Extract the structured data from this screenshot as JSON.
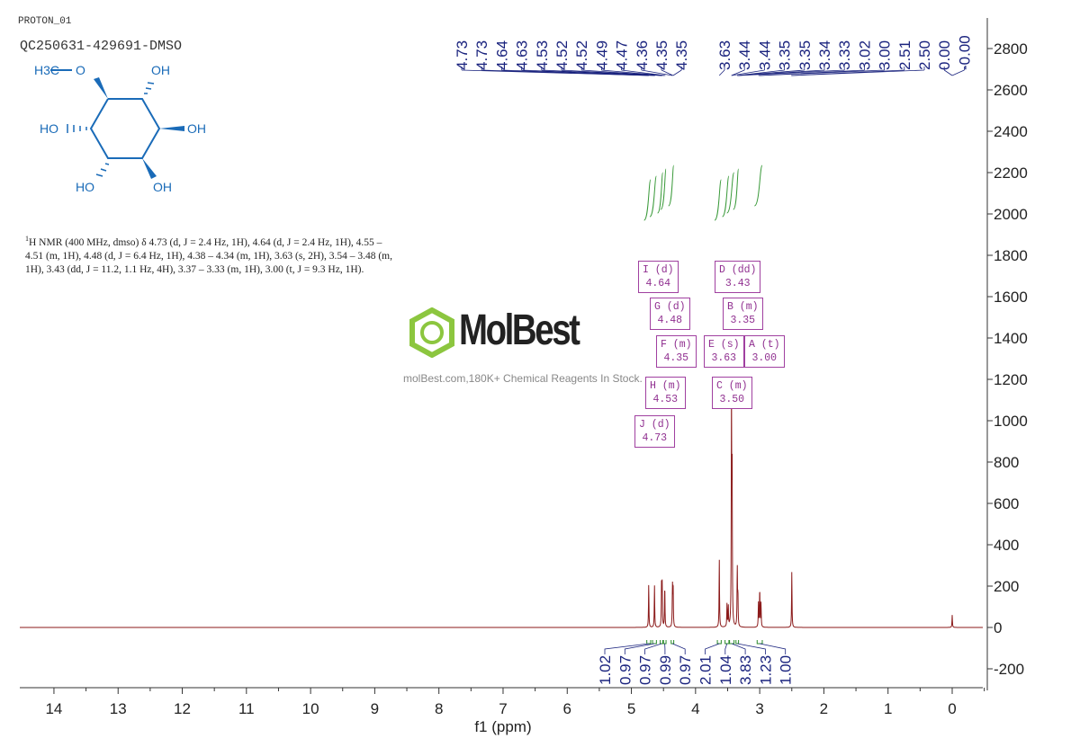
{
  "header": {
    "experiment": "PROTON_01",
    "sample": "QC250631-429691-DMSO"
  },
  "structure": {
    "labels": [
      "H3C",
      "O",
      "OH",
      "HO",
      "OH",
      "HO",
      "OH"
    ],
    "color": "#1a6bb8"
  },
  "description": {
    "nucleus_sup": "1",
    "text": "H NMR (400 MHz, dmso) δ 4.73 (d, J = 2.4 Hz, 1H), 4.64 (d, J = 2.4 Hz, 1H), 4.55 – 4.51 (m, 1H), 4.48 (d, J = 6.4 Hz, 1H), 4.38 – 4.34 (m, 1H), 3.63 (s, 2H), 3.54 – 3.48 (m, 1H), 3.43 (dd, J = 11.2, 1.1 Hz, 4H), 3.37 – 3.33 (m, 1H), 3.00 (t, J = 9.3 Hz, 1H)."
  },
  "watermark": {
    "logo": "MolBest",
    "tagline": "molBest.com,180K+ Chemical Reagents In Stock."
  },
  "chart_data": {
    "type": "line",
    "xlabel": "f1 (ppm)",
    "xlim": [
      14.5,
      -0.5
    ],
    "ylim": [
      -300,
      2950
    ],
    "xticks": [
      14,
      13,
      12,
      11,
      10,
      9,
      8,
      7,
      6,
      5,
      4,
      3,
      2,
      1,
      0
    ],
    "yticks": [
      -200,
      0,
      200,
      400,
      600,
      800,
      1000,
      1200,
      1400,
      1600,
      1800,
      2000,
      2200,
      2400,
      2600,
      2800
    ],
    "spectrum_color": "#8b1a1a",
    "peaks": [
      {
        "ppm": 4.73,
        "h": 210
      },
      {
        "ppm": 4.64,
        "h": 205
      },
      {
        "ppm": 4.53,
        "h": 210
      },
      {
        "ppm": 4.52,
        "h": 200
      },
      {
        "ppm": 4.48,
        "h": 205
      },
      {
        "ppm": 4.36,
        "h": 200
      },
      {
        "ppm": 4.35,
        "h": 205
      },
      {
        "ppm": 3.63,
        "h": 330
      },
      {
        "ppm": 3.51,
        "h": 110
      },
      {
        "ppm": 3.49,
        "h": 100
      },
      {
        "ppm": 3.44,
        "h": 1100
      },
      {
        "ppm": 3.43,
        "h": 700
      },
      {
        "ppm": 3.35,
        "h": 290
      },
      {
        "ppm": 3.34,
        "h": 150
      },
      {
        "ppm": 3.02,
        "h": 120
      },
      {
        "ppm": 3.0,
        "h": 190
      },
      {
        "ppm": 2.98,
        "h": 120
      },
      {
        "ppm": 2.5,
        "h": 270
      },
      {
        "ppm": 0.0,
        "h": 60
      }
    ],
    "peak_labels_left": [
      "4.73",
      "4.73",
      "4.64",
      "4.63",
      "4.53",
      "4.52",
      "4.52",
      "4.49",
      "4.47",
      "4.36",
      "4.35",
      "4.35"
    ],
    "peak_labels_right": [
      "3.63",
      "3.44",
      "3.44",
      "3.35",
      "3.35",
      "3.34",
      "3.33",
      "3.02",
      "3.00",
      "2.51",
      "2.50",
      "0.00",
      "-0.00"
    ],
    "integrals": [
      {
        "value": "1.02",
        "from": 4.76,
        "to": 4.7
      },
      {
        "value": "0.97",
        "from": 4.67,
        "to": 4.61
      },
      {
        "value": "0.97",
        "from": 4.55,
        "to": 4.51
      },
      {
        "value": "0.99",
        "from": 4.5,
        "to": 4.46
      },
      {
        "value": "0.97",
        "from": 4.38,
        "to": 4.34
      },
      {
        "value": "2.01",
        "from": 3.66,
        "to": 3.6
      },
      {
        "value": "1.04",
        "from": 3.54,
        "to": 3.48
      },
      {
        "value": "3.83",
        "from": 3.47,
        "to": 3.4
      },
      {
        "value": "1.23",
        "from": 3.37,
        "to": 3.33
      },
      {
        "value": "1.00",
        "from": 3.04,
        "to": 2.96
      }
    ],
    "multiplets": [
      {
        "id": "I",
        "mult": "d",
        "shift": "4.64"
      },
      {
        "id": "G",
        "mult": "d",
        "shift": "4.48"
      },
      {
        "id": "F",
        "mult": "m",
        "shift": "4.35"
      },
      {
        "id": "H",
        "mult": "m",
        "shift": "4.53"
      },
      {
        "id": "J",
        "mult": "d",
        "shift": "4.73"
      },
      {
        "id": "D",
        "mult": "dd",
        "shift": "3.43"
      },
      {
        "id": "B",
        "mult": "m",
        "shift": "3.35"
      },
      {
        "id": "E",
        "mult": "s",
        "shift": "3.63"
      },
      {
        "id": "A",
        "mult": "t",
        "shift": "3.00"
      },
      {
        "id": "C",
        "mult": "m",
        "shift": "3.50"
      }
    ]
  }
}
